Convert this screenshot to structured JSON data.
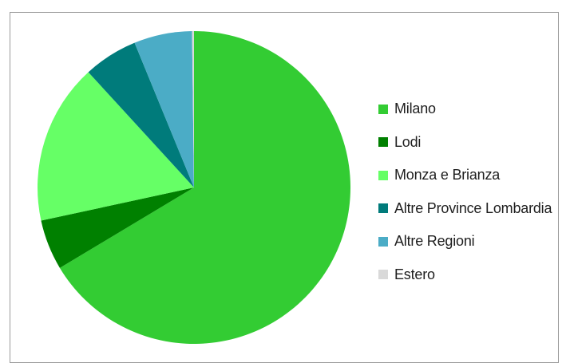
{
  "chart_data": {
    "type": "pie",
    "title": "",
    "legend_position": "right",
    "slices": [
      {
        "label": "Milano",
        "value": 66.4,
        "color": "#33cc33"
      },
      {
        "label": "Lodi",
        "value": 5.2,
        "color": "#008000"
      },
      {
        "label": "Monza e Brianza",
        "value": 16.6,
        "color": "#66ff66"
      },
      {
        "label": "Altre Province Lombardia",
        "value": 5.6,
        "color": "#007b7b"
      },
      {
        "label": "Altre Regioni",
        "value": 6.0,
        "color": "#4bacc6"
      },
      {
        "label": "Estero",
        "value": 0.2,
        "color": "#d9d9d9"
      }
    ]
  }
}
